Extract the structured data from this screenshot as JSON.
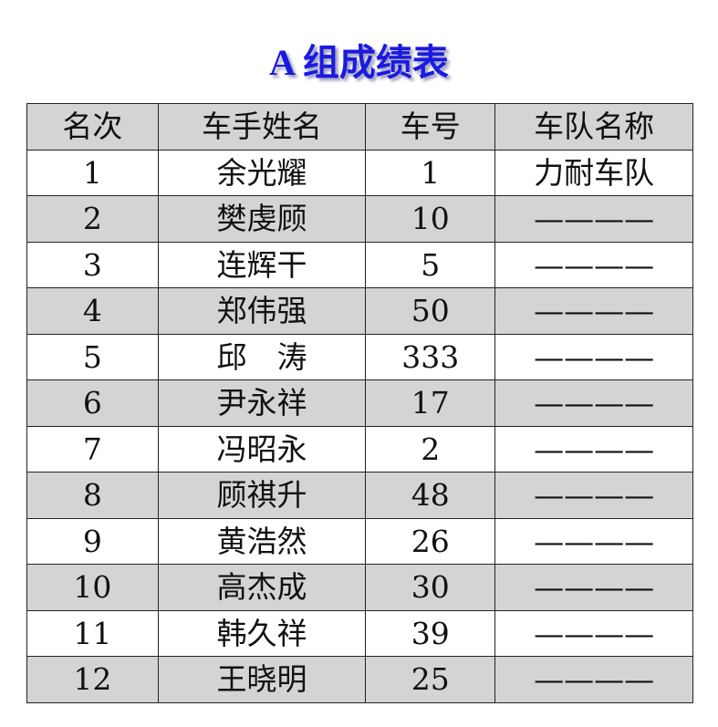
{
  "title": "A 组成绩表",
  "headers": [
    "名次",
    "车手姓名",
    "车号",
    "车队名称"
  ],
  "rows": [
    [
      "1",
      "余光耀",
      "1",
      "力耐车队"
    ],
    [
      "2",
      "樊虔顾",
      "10",
      "————"
    ],
    [
      "3",
      "连辉干",
      "5",
      "————"
    ],
    [
      "4",
      "郑伟强",
      "50",
      "————"
    ],
    [
      "5",
      "邱　涛",
      "333",
      "————"
    ],
    [
      "6",
      "尹永祥",
      "17",
      "————"
    ],
    [
      "7",
      "冯昭永",
      "2",
      "————"
    ],
    [
      "8",
      "顾祺升",
      "48",
      "————"
    ],
    [
      "9",
      "黄浩然",
      "26",
      "————"
    ],
    [
      "10",
      "高杰成",
      "30",
      "————"
    ],
    [
      "11",
      "韩久祥",
      "39",
      "————"
    ],
    [
      "12",
      "王晓明",
      "25",
      "————"
    ]
  ]
}
